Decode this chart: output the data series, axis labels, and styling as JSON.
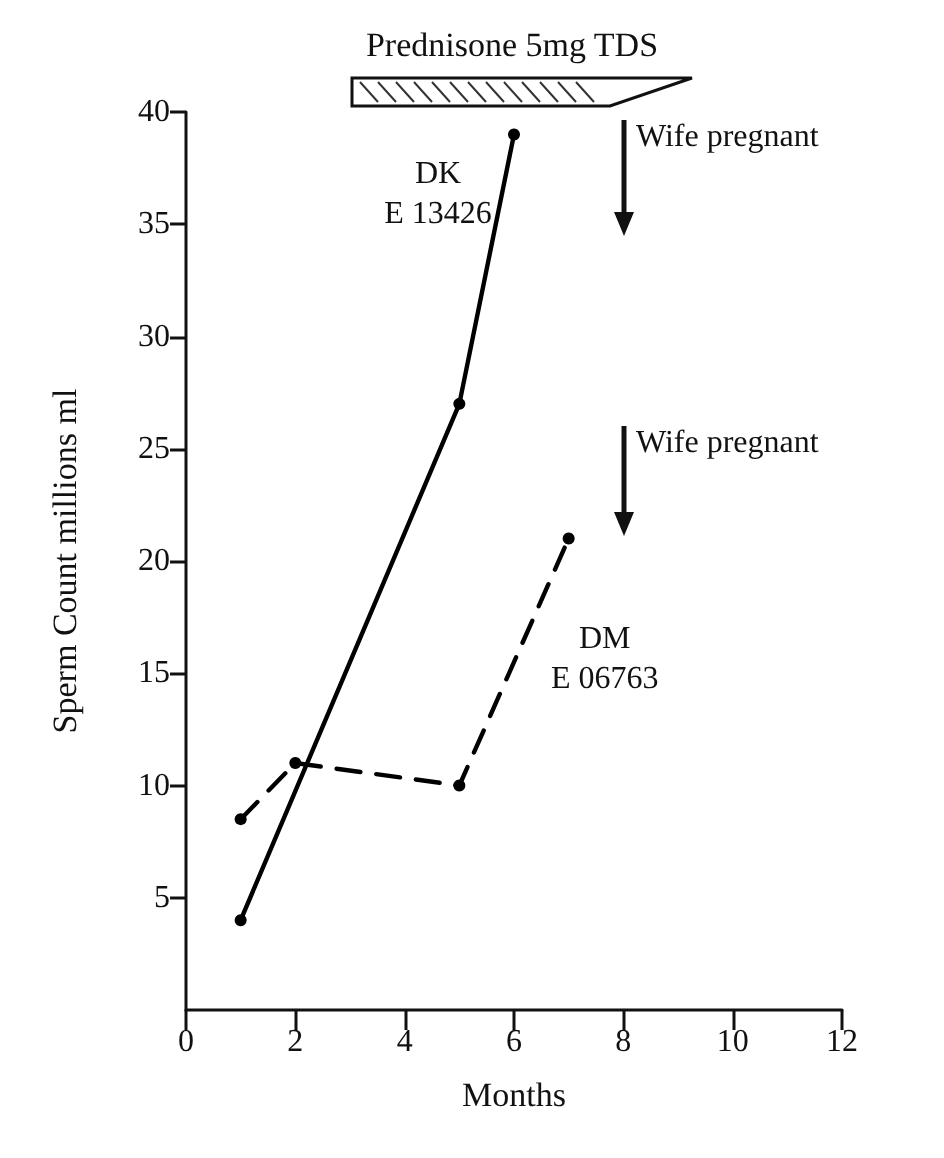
{
  "chart_data": {
    "type": "line",
    "xlabel": "Months",
    "ylabel": "Sperm Count millions ml",
    "x": [
      1,
      5,
      6
    ],
    "series": [
      {
        "name": "DK\nE 13426",
        "color": "#000000",
        "line_style": "solid",
        "values": [
          4,
          27,
          39
        ]
      },
      {
        "name": "DM\nE 06763",
        "color": "#000000",
        "line_style": "dashed",
        "x": [
          1,
          2,
          5,
          7
        ],
        "values": [
          8.5,
          11,
          10,
          21
        ]
      }
    ],
    "xlim": [
      0,
      12
    ],
    "xticks": [
      0,
      2,
      4,
      6,
      8,
      10,
      12
    ],
    "ylim": [
      0,
      40
    ],
    "yticks": [
      5,
      10,
      15,
      20,
      25,
      30,
      35,
      40
    ],
    "annotations": [
      "Prednisone 5mg TDS",
      "Wife pregnant",
      "Wife pregnant"
    ],
    "marker": "circle",
    "grid": false,
    "legend": false
  }
}
